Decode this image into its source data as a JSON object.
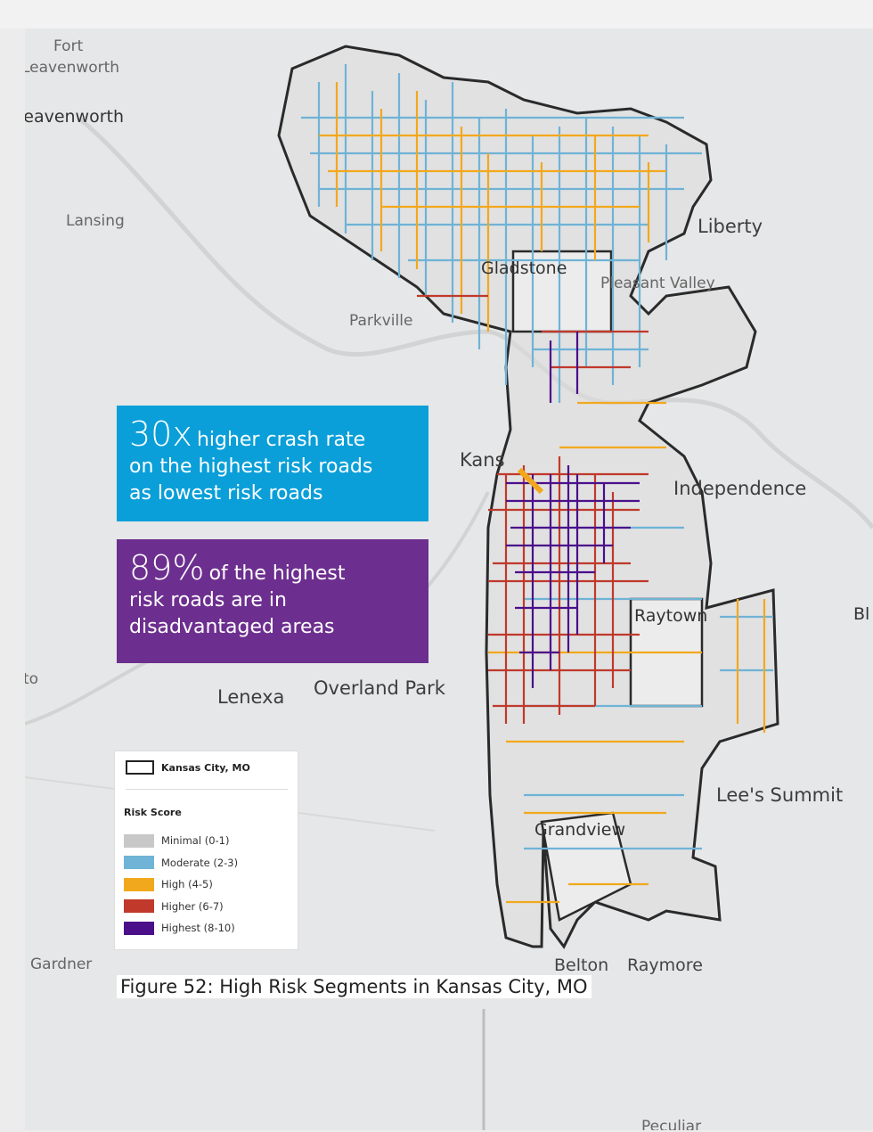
{
  "places": {
    "fort_leavenworth": "Fort\nLeavenworth",
    "fort_a": "Fort",
    "fort_b": "Leavenworth",
    "leavenworth": "Leavenworth",
    "lansing": "Lansing",
    "liberty": "Liberty",
    "gladstone": "Gladstone",
    "pleasant_valley": "Pleasant Valley",
    "parkville": "Parkville",
    "kansas": "Kans",
    "independence": "Independence",
    "raytown": "Raytown",
    "blue": "Bl",
    "to": "to",
    "lenexa": "Lenexa",
    "overland_park": "Overland Park",
    "lees_summit": "Lee's Summit",
    "grandview": "Grandview",
    "gardner": "Gardner",
    "belton": "Belton",
    "raymore": "Raymore",
    "peculiar": "Peculiar"
  },
  "callouts": {
    "crash": {
      "number": "30x",
      "lead": "higher crash rate",
      "rest_1": "on the highest risk roads",
      "rest_2": "as lowest risk roads",
      "color": "#0a9fd9"
    },
    "disadvantaged": {
      "number": "89%",
      "lead": "of the highest",
      "rest_1": "risk roads are in",
      "rest_2": "disadvantaged areas",
      "color": "#6d2f8f"
    }
  },
  "legend": {
    "city_label": "Kansas City, MO",
    "risk_title": "Risk Score",
    "items": [
      {
        "label": "Minimal (0-1)",
        "color": "#c8c8c8"
      },
      {
        "label": "Moderate (2-3)",
        "color": "#6fb3d6"
      },
      {
        "label": "High (4-5)",
        "color": "#f2a81d"
      },
      {
        "label": "Higher (6-7)",
        "color": "#c0392b"
      },
      {
        "label": "Highest (8-10)",
        "color": "#4b0f8a"
      }
    ]
  },
  "caption": "Figure 52: High Risk Segments in Kansas City, MO"
}
